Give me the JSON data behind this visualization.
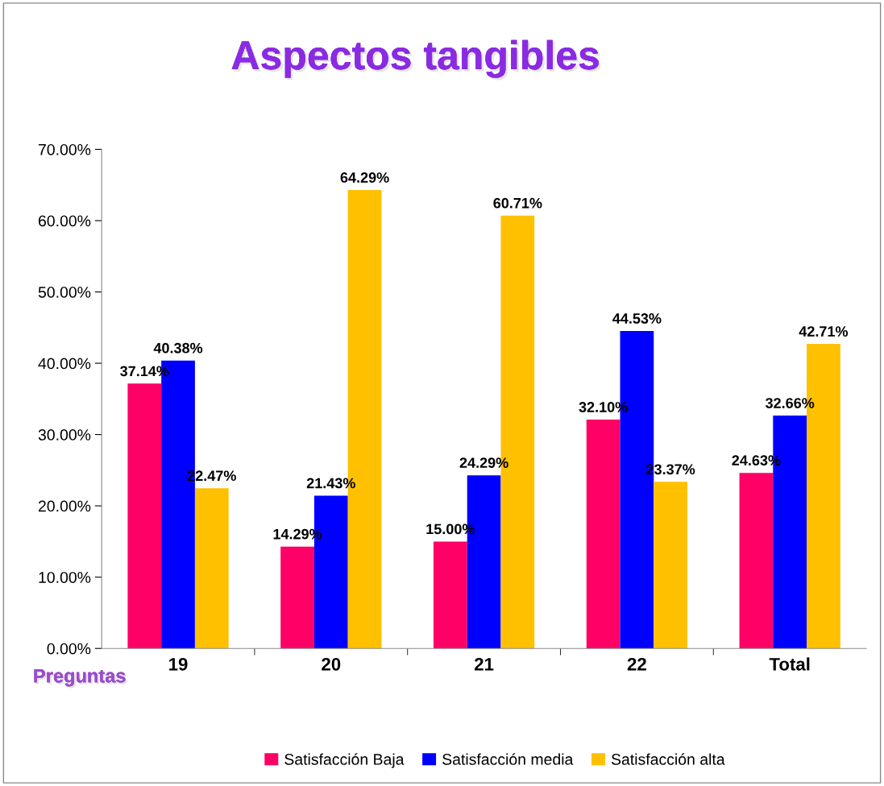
{
  "chart_data": {
    "type": "bar",
    "title": "Aspectos tangibles",
    "xlabel": "Preguntas",
    "categories": [
      "19",
      "20",
      "21",
      "22",
      "Total"
    ],
    "series": [
      {
        "name": "Satisfacción Baja",
        "color": "#ff0066",
        "values": [
          37.14,
          14.29,
          15.0,
          32.1,
          24.63
        ],
        "value_labels": [
          "37.14%",
          "14.29%",
          "15.00%",
          "32.10%",
          "24.63%"
        ]
      },
      {
        "name": "Satisfacción media",
        "color": "#0000ff",
        "values": [
          40.38,
          21.43,
          24.29,
          44.53,
          32.66
        ],
        "value_labels": [
          "40.38%",
          "21.43%",
          "24.29%",
          "44.53%",
          "32.66%"
        ]
      },
      {
        "name": "Satisfacción alta",
        "color": "#ffc000",
        "values": [
          22.47,
          64.29,
          60.71,
          23.37,
          42.71
        ],
        "value_labels": [
          "22.47%",
          "64.29%",
          "60.71%",
          "23.37%",
          "42.71%"
        ]
      }
    ],
    "ylim": [
      0,
      70
    ],
    "yticks": [
      {
        "value": 0,
        "label": "0.00%"
      },
      {
        "value": 10,
        "label": "10.00%"
      },
      {
        "value": 20,
        "label": "20.00%"
      },
      {
        "value": 30,
        "label": "30.00%"
      },
      {
        "value": 40,
        "label": "40.00%"
      },
      {
        "value": 50,
        "label": "50.00%"
      },
      {
        "value": 60,
        "label": "60.00%"
      },
      {
        "value": 70,
        "label": "70.00%"
      }
    ],
    "grid": false,
    "legend": "bottom"
  }
}
